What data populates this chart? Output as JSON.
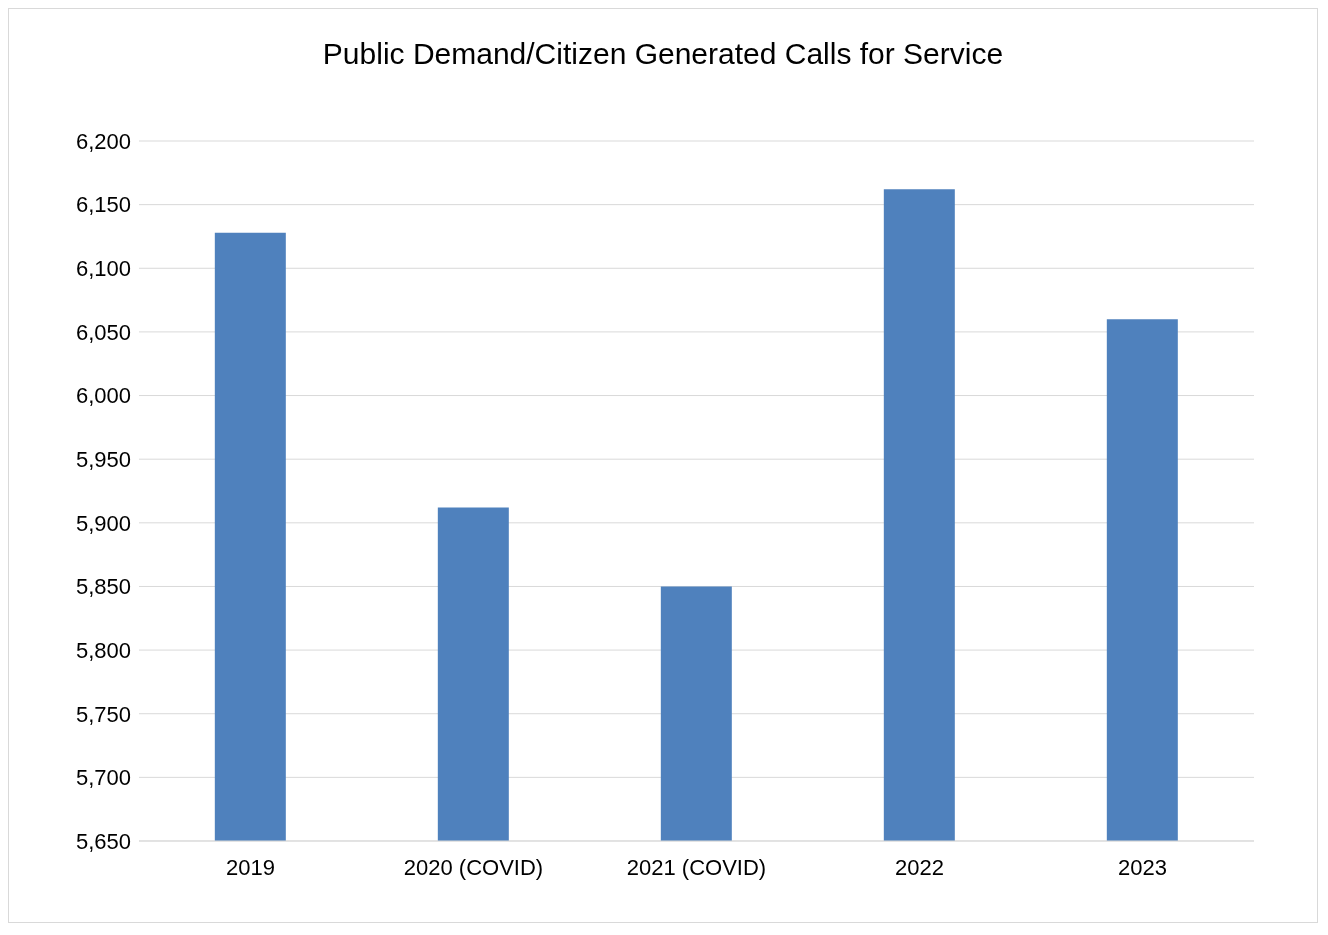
{
  "chart_data": {
    "type": "bar",
    "title": "Public Demand/Citizen Generated Calls for Service",
    "categories": [
      "2019",
      "2020 (COVID)",
      "2021 (COVID)",
      "2022",
      "2023"
    ],
    "values": [
      6128,
      5912,
      5850,
      6162,
      6060
    ],
    "color": "#4f81bd",
    "ylim": [
      5650,
      6200
    ],
    "yticks": [
      {
        "value": 5650,
        "label": "5,650"
      },
      {
        "value": 5700,
        "label": "5,700"
      },
      {
        "value": 5750,
        "label": "5,750"
      },
      {
        "value": 5800,
        "label": "5,800"
      },
      {
        "value": 5850,
        "label": "5,850"
      },
      {
        "value": 5900,
        "label": "5,900"
      },
      {
        "value": 5950,
        "label": "5,950"
      },
      {
        "value": 6000,
        "label": "6,000"
      },
      {
        "value": 6050,
        "label": "6,050"
      },
      {
        "value": 6100,
        "label": "6,100"
      },
      {
        "value": 6150,
        "label": "6,150"
      },
      {
        "value": 6200,
        "label": "6,200"
      }
    ],
    "grid": "y"
  }
}
